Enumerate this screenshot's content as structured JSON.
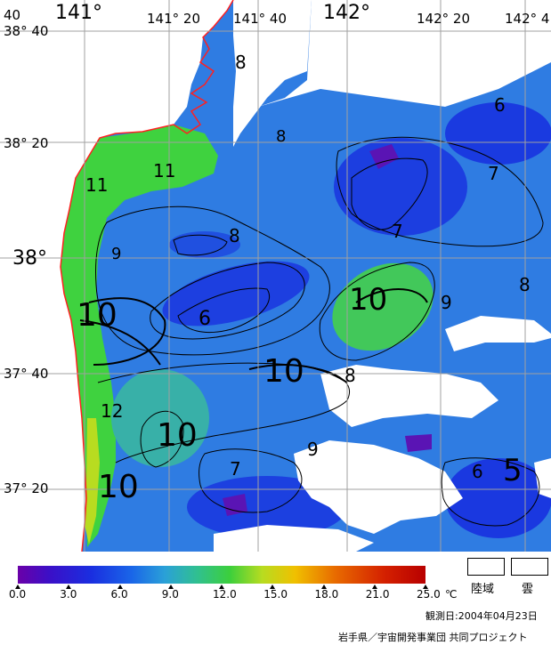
{
  "map": {
    "longitude_labels": [
      "141°",
      "141° 20",
      "141° 40",
      "142°",
      "142° 20",
      "142° 4"
    ],
    "latitude_labels": [
      "38° 40",
      "38° 20",
      "38°",
      "37° 40",
      "37° 20"
    ],
    "corner_label": "40",
    "contour_labels": [
      "8",
      "8",
      "6",
      "11",
      "11",
      "7",
      "9",
      "8",
      "7",
      "10",
      "6",
      "10",
      "9",
      "8",
      "10",
      "12",
      "8",
      "10",
      "7",
      "9",
      "10",
      "6",
      "5"
    ]
  },
  "colorbar": {
    "tick_labels": [
      "0.0",
      "3.0",
      "6.0",
      "9.0",
      "12.0",
      "15.0",
      "18.0",
      "21.0",
      "25.0"
    ],
    "unit": "℃",
    "min": 0.0,
    "max": 25.0
  },
  "legend": {
    "land_label": "陸域",
    "cloud_label": "雲"
  },
  "footer": {
    "observation_date": "観測日:2004年04月23日",
    "credit": "岩手県／宇宙開発事業団 共同プロジェクト"
  },
  "colors": {
    "coastline": "#ff2020",
    "land": "#ffffff",
    "sea_cold": "#1a3ee6",
    "sea_warm": "#3ccf3c"
  }
}
